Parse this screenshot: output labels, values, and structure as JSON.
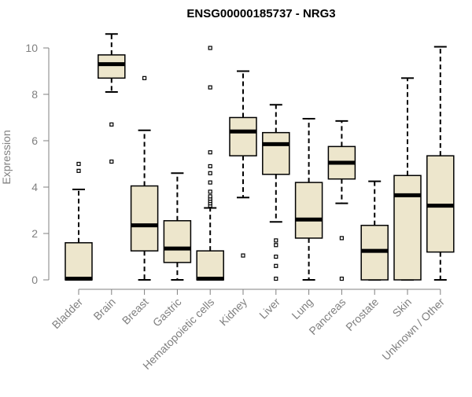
{
  "chart_data": {
    "type": "boxplot",
    "title": "ENSG00000185737 - NRG3",
    "xlabel": "",
    "ylabel": "Expression",
    "ylim": [
      0,
      10
    ],
    "yticks": [
      0,
      2,
      4,
      6,
      8,
      10
    ],
    "grid": false,
    "legend": "none",
    "colors": {
      "box_fill": "#EDE6CC",
      "box_stroke": "#000000",
      "median": "#000000",
      "axis": "#808080",
      "outlier": "#000000"
    },
    "categories": [
      "Bladder",
      "Brain",
      "Breast",
      "Gastric",
      "Hematopoietic cells",
      "Kidney",
      "Liver",
      "Lung",
      "Pancreas",
      "Prostate",
      "Skin",
      "Unknown / Other"
    ],
    "series": [
      {
        "category": "Bladder",
        "whisker_low": 0,
        "q1": 0,
        "median": 0.05,
        "q3": 1.6,
        "whisker_high": 3.9,
        "outliers": [
          4.7,
          5.0
        ]
      },
      {
        "category": "Brain",
        "whisker_low": 8.1,
        "q1": 8.7,
        "median": 9.3,
        "q3": 9.7,
        "whisker_high": 10.6,
        "outliers": [
          6.7,
          5.1
        ]
      },
      {
        "category": "Breast",
        "whisker_low": 0,
        "q1": 1.25,
        "median": 2.35,
        "q3": 4.05,
        "whisker_high": 6.45,
        "outliers": [
          8.7
        ]
      },
      {
        "category": "Gastric",
        "whisker_low": 0,
        "q1": 0.75,
        "median": 1.35,
        "q3": 2.55,
        "whisker_high": 4.6,
        "outliers": []
      },
      {
        "category": "Hematopoietic cells",
        "whisker_low": 0,
        "q1": 0,
        "median": 0.05,
        "q3": 1.25,
        "whisker_high": 3.1,
        "outliers": [
          3.2,
          3.3,
          3.4,
          3.5,
          3.6,
          3.8,
          4.2,
          4.6,
          4.9,
          5.5,
          8.3,
          10.0
        ]
      },
      {
        "category": "Kidney",
        "whisker_low": 3.55,
        "q1": 5.35,
        "median": 6.4,
        "q3": 7.0,
        "whisker_high": 9.0,
        "outliers": [
          1.05
        ]
      },
      {
        "category": "Liver",
        "whisker_low": 2.5,
        "q1": 4.55,
        "median": 5.85,
        "q3": 6.35,
        "whisker_high": 7.55,
        "outliers": [
          1.7,
          1.5,
          1.0,
          0.6,
          0.05
        ]
      },
      {
        "category": "Lung",
        "whisker_low": 0,
        "q1": 1.8,
        "median": 2.6,
        "q3": 4.2,
        "whisker_high": 6.95,
        "outliers": []
      },
      {
        "category": "Pancreas",
        "whisker_low": 3.3,
        "q1": 4.35,
        "median": 5.05,
        "q3": 5.75,
        "whisker_high": 6.85,
        "outliers": [
          1.8,
          0.05
        ]
      },
      {
        "category": "Prostate",
        "whisker_low": 0,
        "q1": 0,
        "median": 1.25,
        "q3": 2.35,
        "whisker_high": 4.25,
        "outliers": []
      },
      {
        "category": "Skin",
        "whisker_low": 0,
        "q1": 0,
        "median": 3.65,
        "q3": 4.5,
        "whisker_high": 8.7,
        "outliers": []
      },
      {
        "category": "Unknown / Other",
        "whisker_low": 0,
        "q1": 1.2,
        "median": 3.2,
        "q3": 5.35,
        "whisker_high": 10.05,
        "outliers": []
      }
    ]
  }
}
